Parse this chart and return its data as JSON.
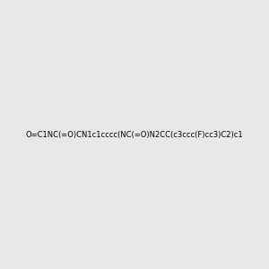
{
  "smiles": "O=C1NC(=O)CN1c1cccc(NC(=O)N2CC(c3ccc(F)cc3)C2)c1",
  "background_color": "#e8e8e8",
  "image_size": 300,
  "title": ""
}
